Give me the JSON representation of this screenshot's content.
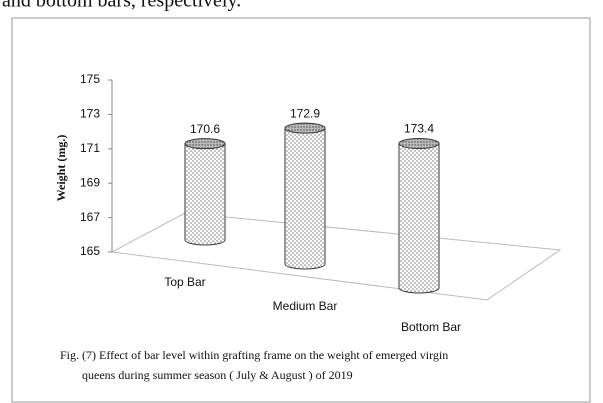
{
  "header_text": "and bottom bars, respectively.",
  "chart_data": {
    "type": "bar",
    "ylabel": "Weight (mg.)",
    "categories": [
      "Top Bar",
      "Medium Bar",
      "Bottom Bar"
    ],
    "values": [
      170.6,
      172.9,
      173.4
    ],
    "ylim": [
      165,
      175
    ],
    "yticks": [
      165,
      167,
      169,
      171,
      173,
      175
    ],
    "caption": [
      "Fig. (7) Effect of  bar level within grafting frame on the weight of emerged virgin",
      "queens during summer season ( July & August ) of 2019"
    ]
  }
}
